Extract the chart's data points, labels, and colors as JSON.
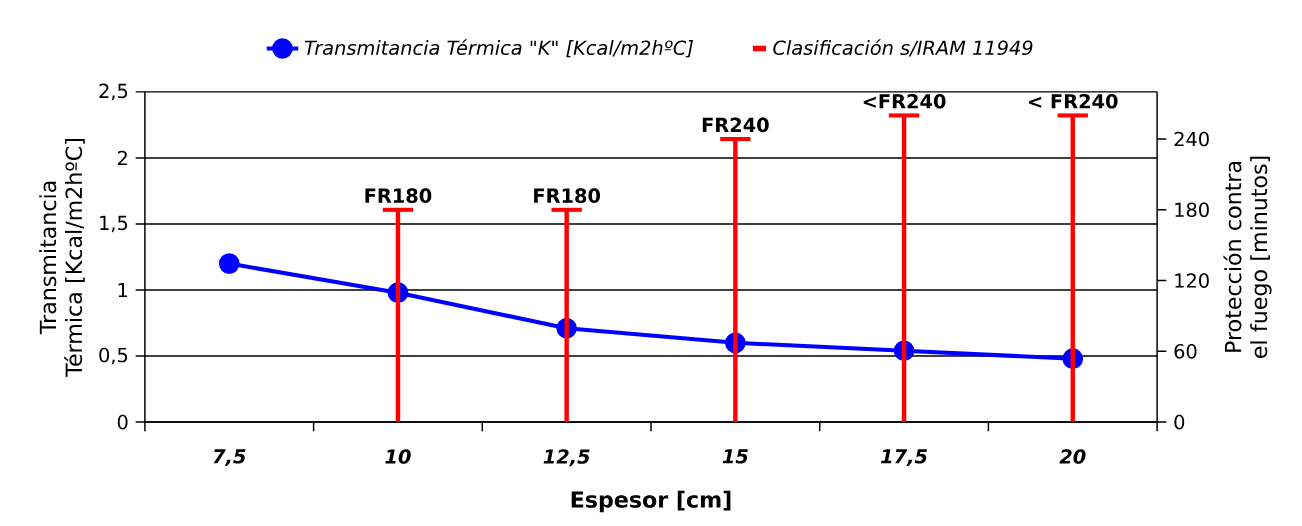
{
  "chart_data": {
    "type": "line",
    "categories": [
      "7,5",
      "10",
      "12,5",
      "15",
      "17,5",
      "20"
    ],
    "xlabel": "Espesor [cm]",
    "ylabel": "Transmitancia Térmica [Kcal/m2hºC]",
    "y2label": "Protección contra el fuego [minutos]",
    "ylim": [
      0,
      2.5
    ],
    "yticks": [
      0,
      {
        "value": 0.5,
        "label": "0,5"
      },
      1,
      {
        "value": 1.5,
        "label": "1,5"
      },
      2,
      {
        "value": 2.5,
        "label": "2,5"
      }
    ],
    "y2lim": [
      0,
      280
    ],
    "y2ticks": [
      0,
      60,
      120,
      180,
      240
    ],
    "grid": "y",
    "legend": "top",
    "series": [
      {
        "name": "Transmitancia Térmica \"K\" [Kcal/m2hºC]",
        "color": "#0000ff",
        "marker": "circle",
        "values": [
          1.2,
          0.98,
          0.71,
          0.6,
          0.54,
          0.48
        ]
      },
      {
        "name": "Clasificación s/IRAM 11949",
        "type": "bar",
        "axis": "y2",
        "color": "#ff0000",
        "values": [
          null,
          180,
          180,
          240,
          260,
          260
        ],
        "value_labels": [
          null,
          "FR180",
          "FR180",
          "FR240",
          "<FR240",
          "< FR240"
        ]
      }
    ]
  }
}
